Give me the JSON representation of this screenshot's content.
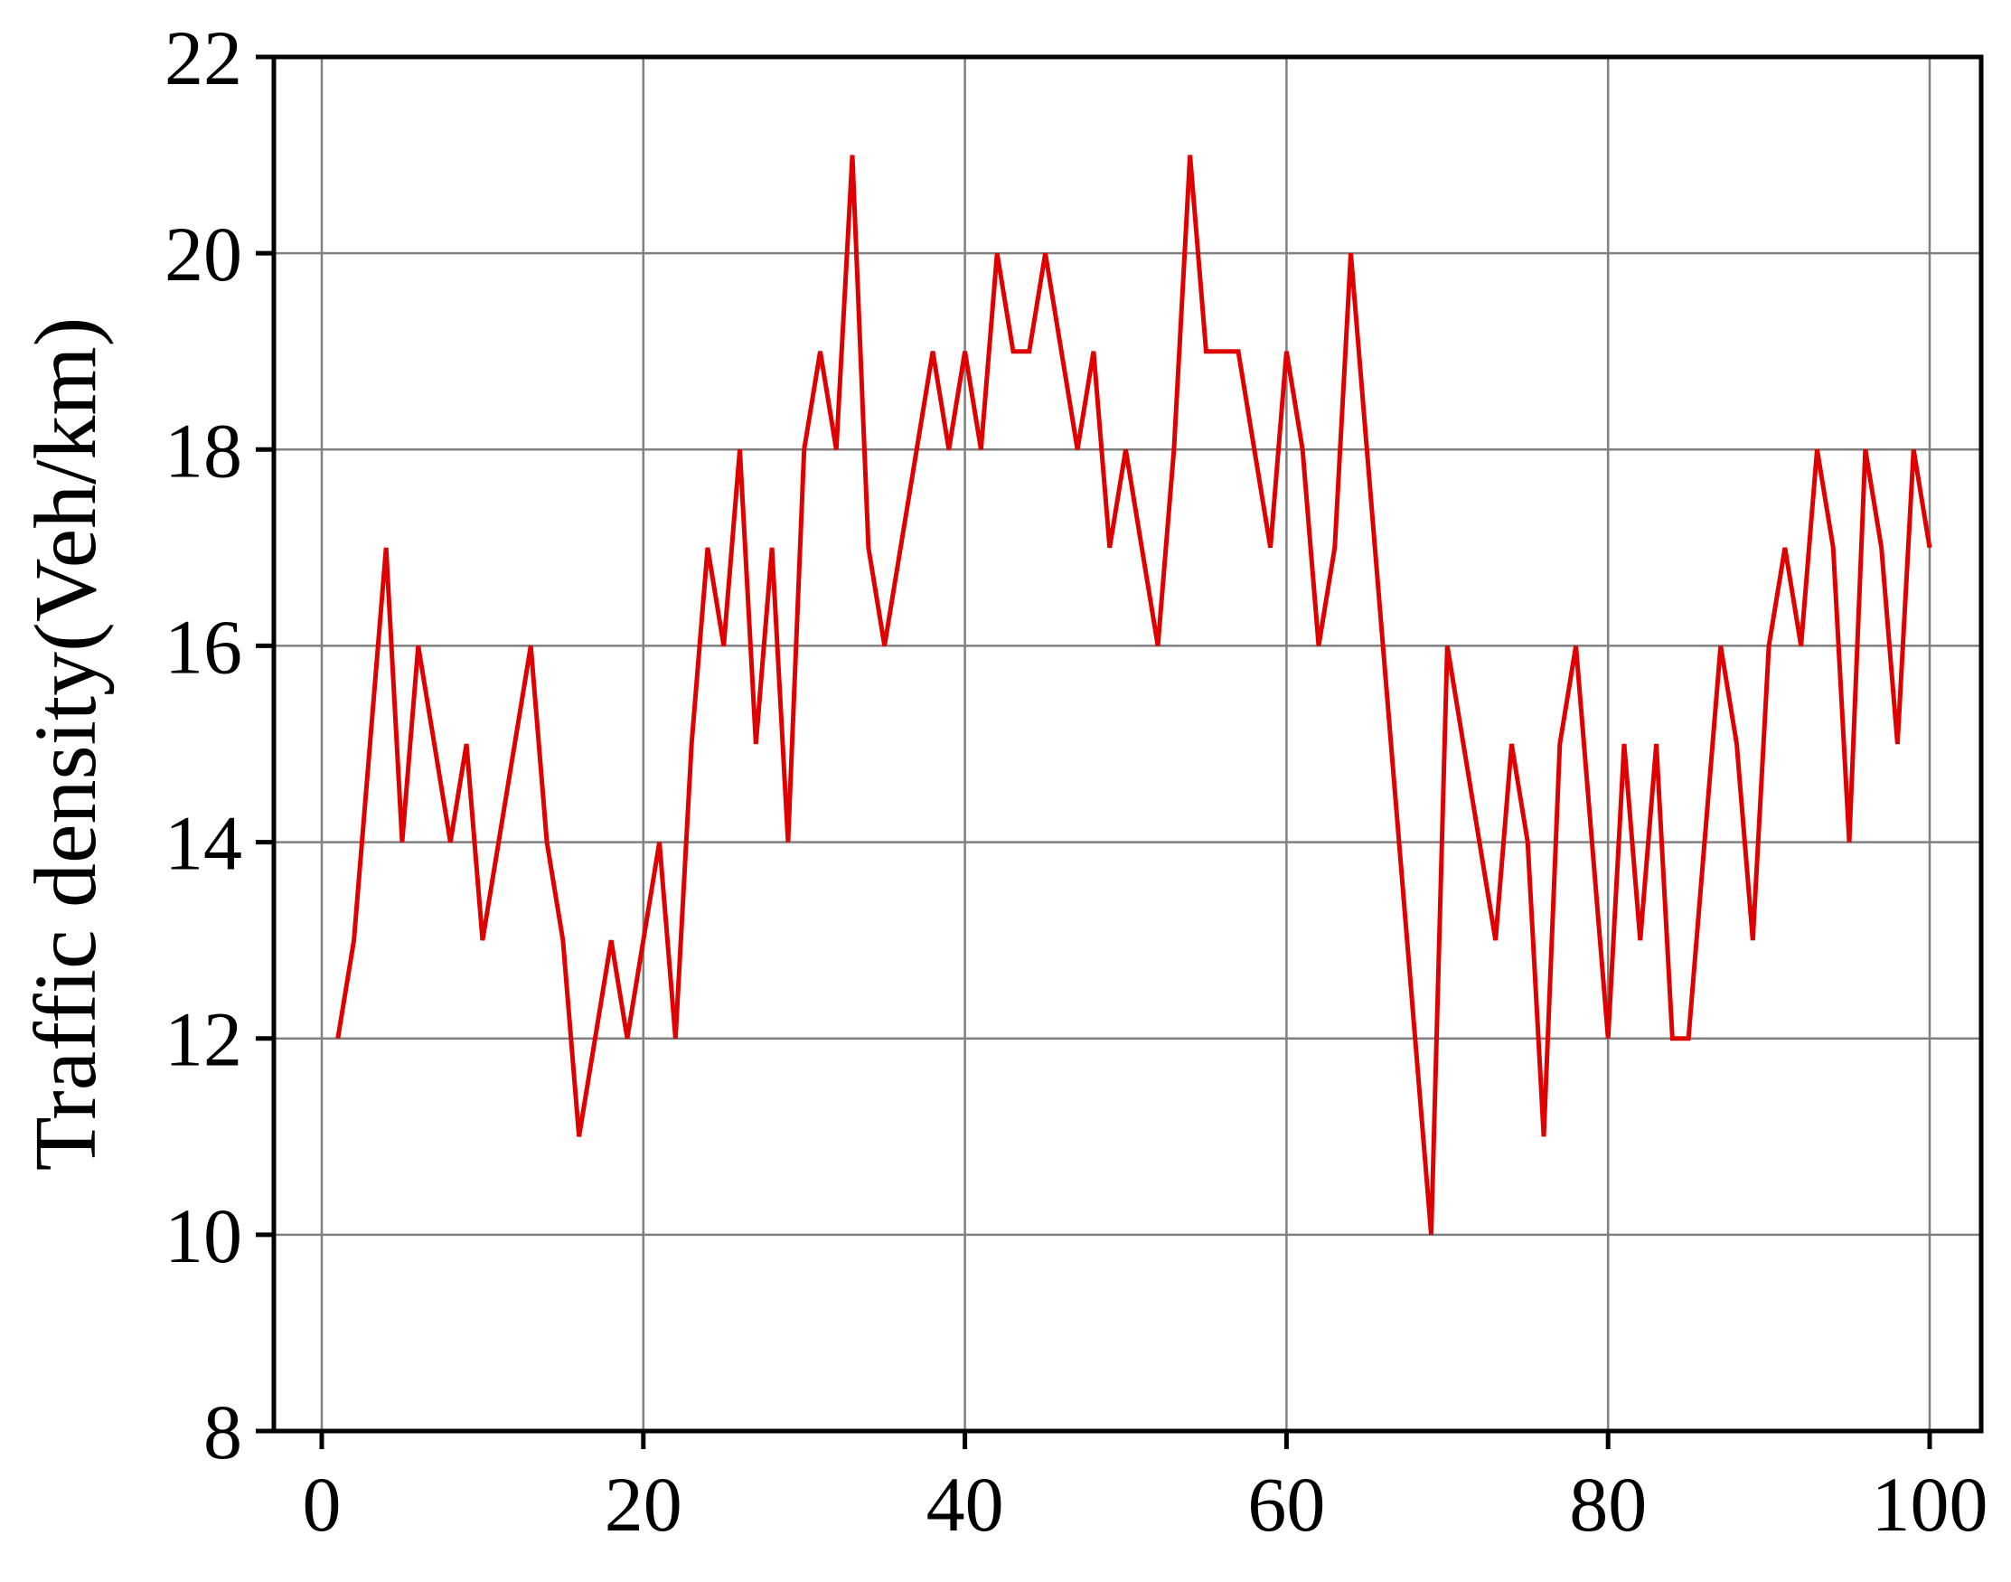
{
  "chart_data": {
    "type": "line",
    "title": "",
    "xlabel": "",
    "ylabel": "Traffic density(Veh/km)",
    "xlim": [
      0,
      100
    ],
    "ylim": [
      8,
      22
    ],
    "xticks": [
      0,
      20,
      40,
      60,
      80,
      100
    ],
    "yticks": [
      8,
      10,
      12,
      14,
      16,
      18,
      20,
      22
    ],
    "grid": true,
    "series": [
      {
        "color": "#e00000",
        "x": [
          1,
          2,
          3,
          4,
          5,
          6,
          7,
          8,
          9,
          10,
          11,
          12,
          13,
          14,
          15,
          16,
          17,
          18,
          19,
          20,
          21,
          22,
          23,
          24,
          25,
          26,
          27,
          28,
          29,
          30,
          31,
          32,
          33,
          34,
          35,
          36,
          37,
          38,
          39,
          40,
          41,
          42,
          43,
          44,
          45,
          46,
          47,
          48,
          49,
          50,
          51,
          52,
          53,
          54,
          55,
          56,
          57,
          58,
          59,
          60,
          61,
          62,
          63,
          64,
          65,
          66,
          67,
          68,
          69,
          70,
          71,
          72,
          73,
          74,
          75,
          76,
          77,
          78,
          79,
          80,
          81,
          82,
          83,
          84,
          85,
          86,
          87,
          88,
          89,
          90,
          91,
          92,
          93,
          94,
          95,
          96,
          97,
          98,
          99,
          100
        ],
        "y": [
          12,
          13,
          15,
          17,
          14,
          16,
          15,
          14,
          15,
          13,
          14,
          15,
          16,
          14,
          13,
          11,
          12,
          13,
          12,
          13,
          14,
          12,
          15,
          17,
          16,
          18,
          15,
          17,
          14,
          18,
          19,
          18,
          21,
          17,
          16,
          17,
          18,
          19,
          18,
          19,
          18,
          20,
          19,
          19,
          20,
          19,
          18,
          19,
          17,
          18,
          17,
          16,
          18,
          21,
          19,
          19,
          19,
          18,
          17,
          19,
          18,
          16,
          17,
          20,
          18,
          16,
          14,
          12,
          10,
          16,
          15,
          14,
          13,
          15,
          14,
          11,
          15,
          16,
          14,
          12,
          15,
          13,
          15,
          12,
          12,
          14,
          16,
          15,
          13,
          16,
          17,
          16,
          18,
          17,
          14,
          18,
          17,
          15,
          18,
          17
        ]
      }
    ]
  }
}
